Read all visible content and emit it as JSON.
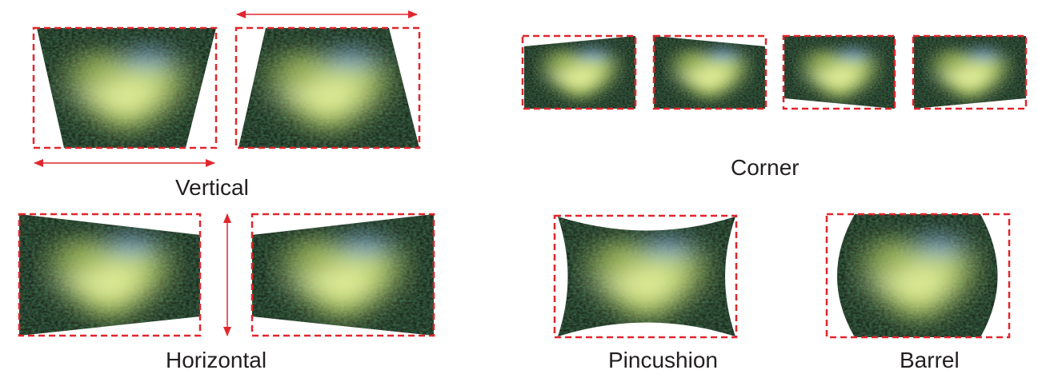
{
  "labels": {
    "vertical": "Vertical",
    "corner": "Corner",
    "horizontal": "Horizontal",
    "pincushion": "Pincushion",
    "barrel": "Barrel"
  },
  "colors": {
    "frame": "#e1262d",
    "foliage": "#1c2a1e",
    "heart_fill": "#b7cf6a",
    "heart_center": "#e0ec9a",
    "sky": "#7ea6d6",
    "caption": "#231f20"
  }
}
